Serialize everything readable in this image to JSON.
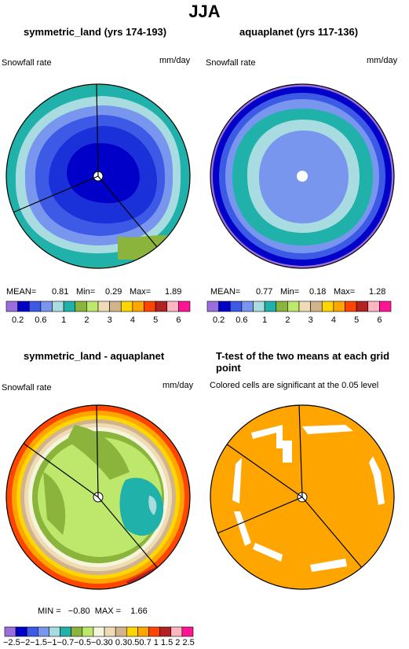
{
  "main_title": "JJA",
  "panels": [
    {
      "title": "symmetric_land (yrs 174-193)",
      "left_label": "Snowfall rate",
      "right_label": "mm/day",
      "stats": {
        "mean_label": "MEAN=",
        "mean": "0.81",
        "min_label": "Min=",
        "min": "0.29",
        "max_label": "Max=",
        "max": "1.89"
      }
    },
    {
      "title": "aquaplanet (yrs 117-136)",
      "left_label": "Snowfall rate",
      "right_label": "mm/day",
      "stats": {
        "mean_label": "MEAN=",
        "mean": "0.77",
        "min_label": "Min=",
        "min": "0.18",
        "max_label": "Max=",
        "max": "1.28"
      }
    },
    {
      "title": "symmetric_land - aquaplanet",
      "left_label": "Snowfall rate",
      "right_label": "mm/day",
      "stats_text": "MIN =   −0.80  MAX =    1.66"
    },
    {
      "title": "T-test of the two means at each grid point",
      "subtitle": "Colored cells are significant at the 0.05 level"
    }
  ],
  "colorbar_top": {
    "colors": [
      "#9a6fdc",
      "#0000c8",
      "#3c5ae6",
      "#7896ee",
      "#a8dce0",
      "#20b2aa",
      "#8ab43c",
      "#bde86c",
      "#f0dcb4",
      "#d2b48c",
      "#ffd700",
      "#ffa500",
      "#ff4500",
      "#b22222",
      "#ffb6c1",
      "#ff1493"
    ],
    "labels": [
      "0.2",
      "0.6",
      "1",
      "2",
      "3",
      "4",
      "5",
      "6"
    ]
  },
  "colorbar_bottom": {
    "colors": [
      "#9a6fdc",
      "#0000c8",
      "#3c5ae6",
      "#7896ee",
      "#a8dce0",
      "#20b2aa",
      "#8ab43c",
      "#bde86c",
      "#f5f5dc",
      "#f0dcb4",
      "#d2b48c",
      "#ffd700",
      "#ffa500",
      "#ff4500",
      "#b22222",
      "#ffb6c1",
      "#ff1493"
    ],
    "label_text": "−2.5−2−1.5−1−0.7−0.5−0.30 0.30.50.7 1 1.5 2 2.5"
  },
  "colors": {
    "significant": "#ffa500",
    "not_significant": "#ffffff"
  }
}
